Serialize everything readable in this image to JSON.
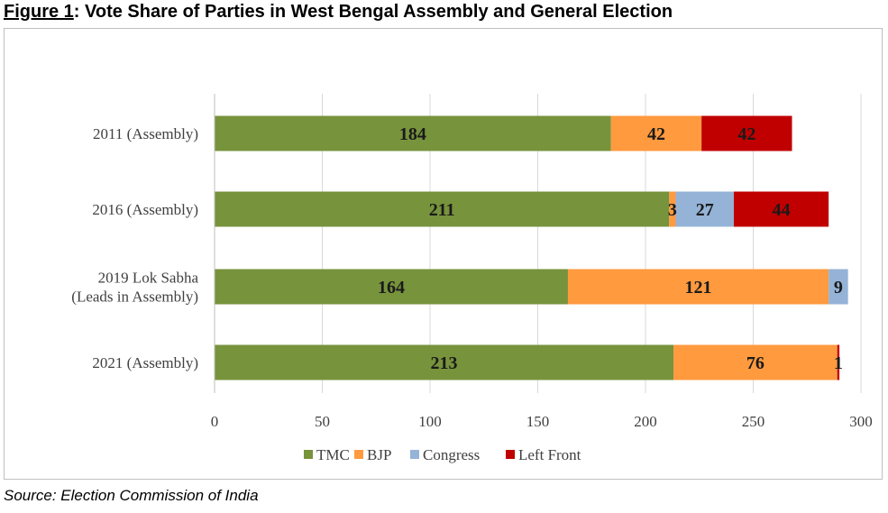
{
  "figure": {
    "number": "Figure 1",
    "title": ": Vote Share of Parties in West Bengal Assembly and General Election",
    "source": "Source: Election Commission of India"
  },
  "colors": {
    "TMC": "#77933c",
    "BJP": "#ff9a3f",
    "Congress": "#95b3d7",
    "Left Front": "#c00000",
    "axis": "#bfbfbf",
    "grid": "#d9d9d9"
  },
  "chart_data": {
    "type": "bar",
    "orientation": "horizontal",
    "stacked": true,
    "categories": [
      "2011 (Assembly)",
      "2016 (Assembly)",
      "2019 Lok Sabha (Leads in Assembly)",
      "2021 (Assembly)"
    ],
    "category_lines": [
      [
        "2011 (Assembly)"
      ],
      [
        "2016 (Assembly)"
      ],
      [
        "2019 Lok Sabha",
        "(Leads in Assembly)"
      ],
      [
        "2021 (Assembly)"
      ]
    ],
    "series": [
      {
        "name": "TMC",
        "values": [
          184,
          211,
          164,
          213
        ],
        "labels": [
          "184",
          "211",
          "164",
          "213"
        ]
      },
      {
        "name": "BJP",
        "values": [
          42,
          3,
          121,
          76
        ],
        "labels": [
          "42",
          "3",
          "121",
          "76"
        ]
      },
      {
        "name": "Congress",
        "values": [
          0,
          27,
          9,
          0
        ],
        "labels": [
          "",
          "27",
          "9",
          ""
        ]
      },
      {
        "name": "Left Front",
        "values": [
          42,
          44,
          0,
          1
        ],
        "labels": [
          "42",
          "44",
          "",
          "1"
        ]
      }
    ],
    "xlim": [
      0,
      300
    ],
    "xticks": [
      "0",
      "50",
      "100",
      "150",
      "200",
      "250",
      "300"
    ],
    "grid": true,
    "legend": "bottom",
    "title": "",
    "xlabel": "",
    "ylabel": ""
  }
}
